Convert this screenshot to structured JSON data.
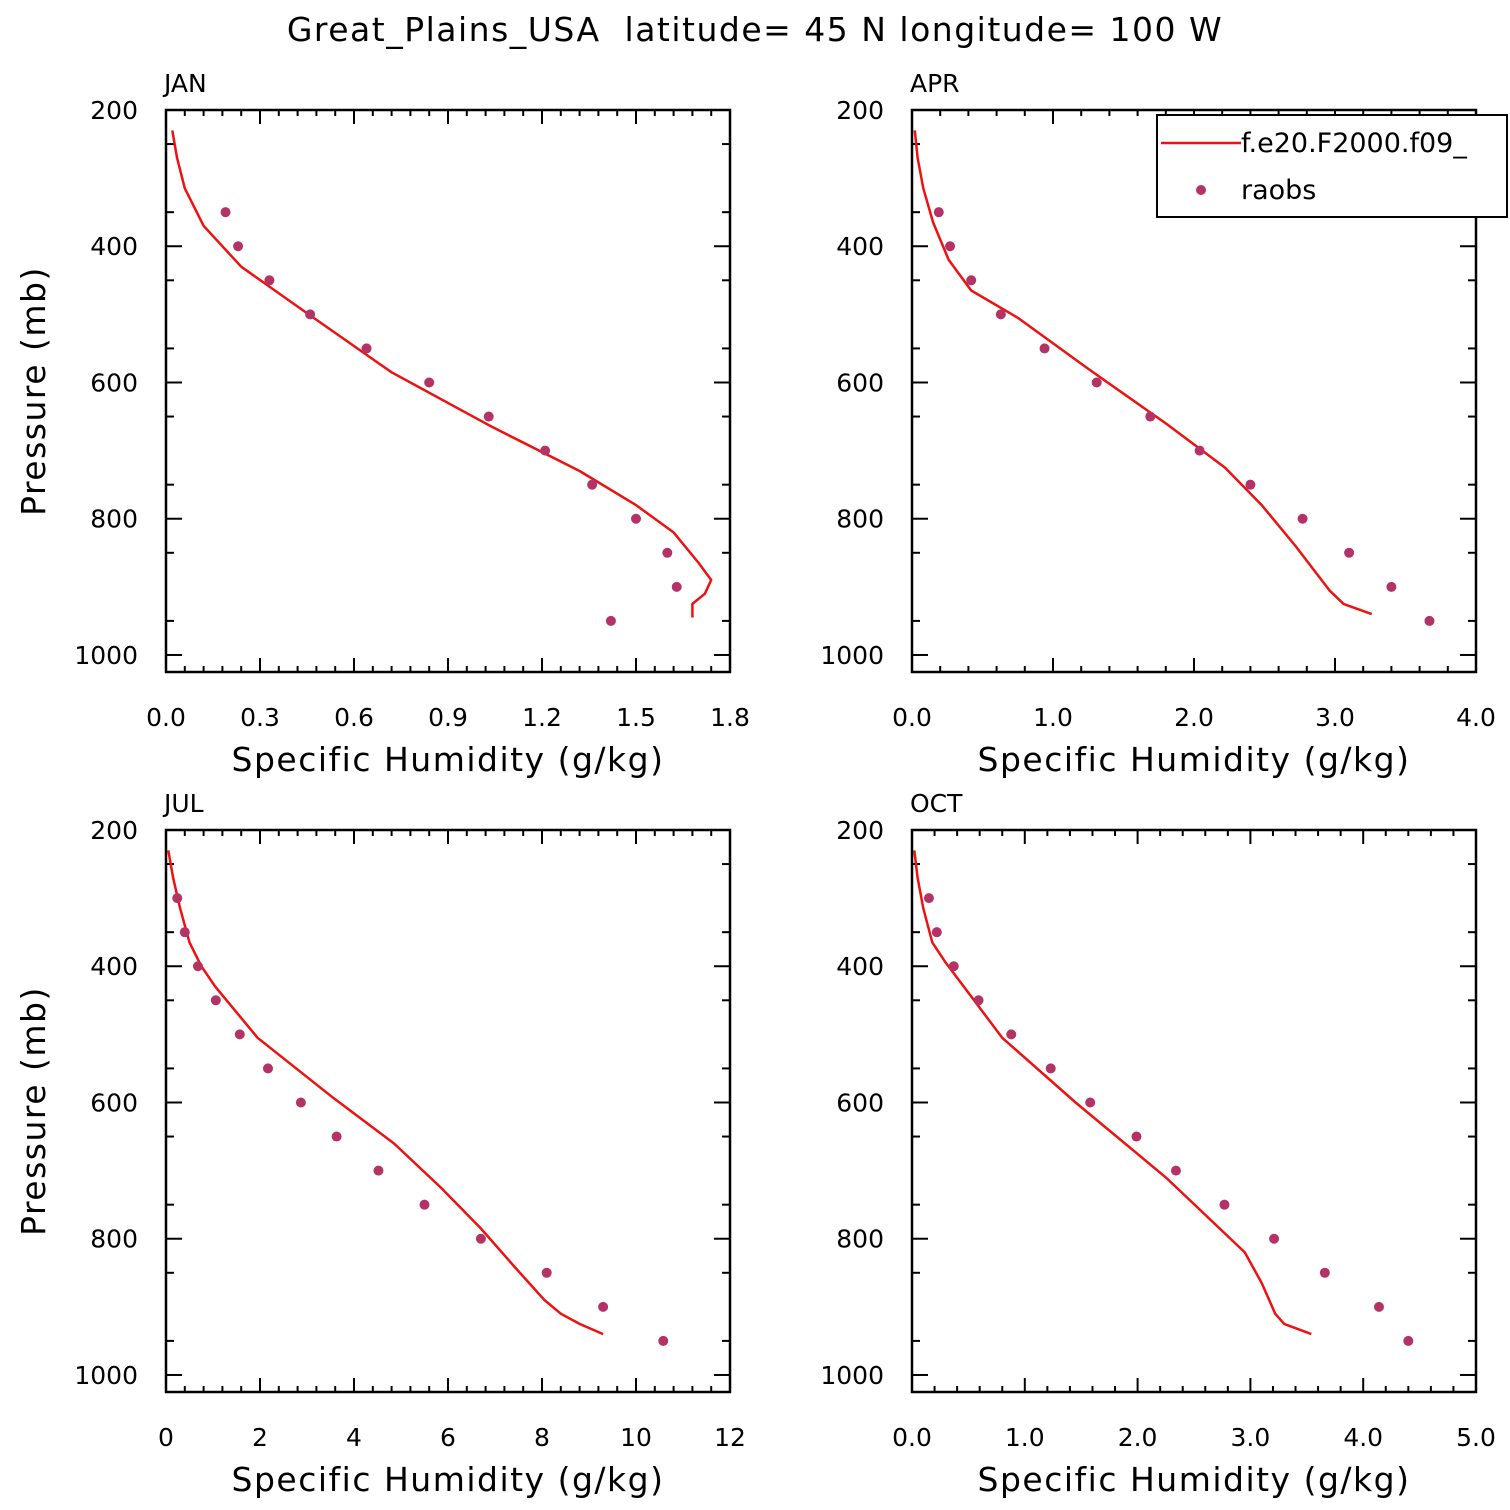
{
  "figure": {
    "title": "Great_Plains_USA  latitude= 45 N longitude= 100 W"
  },
  "chart_data": [
    {
      "type": "line",
      "panel_label": "JAN",
      "xlabel": "Specific Humidity (g/kg)",
      "ylabel": "Pressure (mb)",
      "xlim": [
        0,
        1.8
      ],
      "ylim": [
        1025,
        200
      ],
      "x_ticks": [
        "0.0",
        "0.3",
        "0.6",
        "0.9",
        "1.2",
        "1.5",
        "1.8"
      ],
      "x_tick_values": [
        0,
        0.3,
        0.6,
        0.9,
        1.2,
        1.5,
        1.8
      ],
      "y_ticks": [
        "200",
        "400",
        "600",
        "800",
        "1000"
      ],
      "y_tick_values": [
        200,
        400,
        600,
        800,
        1000
      ],
      "series": [
        {
          "kind": "line",
          "color": "#ee1111",
          "x": [
            0.02,
            0.035,
            0.06,
            0.12,
            0.24,
            0.44,
            0.72,
            1.04,
            1.32,
            1.5,
            1.62,
            1.7,
            1.74,
            1.72,
            1.68,
            1.68
          ],
          "y": [
            230,
            270,
            315,
            370,
            430,
            495,
            585,
            665,
            730,
            780,
            820,
            865,
            890,
            910,
            925,
            945
          ]
        },
        {
          "kind": "scatter",
          "color": "#b33366",
          "x": [
            0.19,
            0.23,
            0.33,
            0.46,
            0.64,
            0.84,
            1.03,
            1.21,
            1.36,
            1.5,
            1.6,
            1.63,
            1.42
          ],
          "y": [
            350,
            400,
            450,
            500,
            550,
            600,
            650,
            700,
            750,
            800,
            850,
            900,
            950
          ]
        }
      ]
    },
    {
      "type": "line",
      "panel_label": "APR",
      "xlabel": "Specific Humidity (g/kg)",
      "ylabel": "",
      "xlim": [
        0,
        4.0
      ],
      "ylim": [
        1025,
        200
      ],
      "x_ticks": [
        "0.0",
        "1.0",
        "2.0",
        "3.0",
        "4.0"
      ],
      "x_tick_values": [
        0,
        1,
        2,
        3,
        4
      ],
      "y_ticks": [
        "200",
        "400",
        "600",
        "800",
        "1000"
      ],
      "y_tick_values": [
        200,
        400,
        600,
        800,
        1000
      ],
      "legend": {
        "placement": "top-right",
        "entries": [
          {
            "label": "f.e20.F2000.f09_",
            "kind": "line",
            "color": "#ee1111"
          },
          {
            "label": "raobs",
            "kind": "marker",
            "color": "#b33366"
          }
        ]
      },
      "series": [
        {
          "kind": "line",
          "color": "#ee1111",
          "x": [
            0.02,
            0.04,
            0.08,
            0.15,
            0.26,
            0.42,
            0.75,
            1.25,
            1.8,
            2.22,
            2.48,
            2.72,
            2.96,
            3.06,
            3.26
          ],
          "y": [
            230,
            270,
            315,
            365,
            420,
            465,
            505,
            580,
            660,
            725,
            780,
            840,
            905,
            925,
            940
          ]
        },
        {
          "kind": "scatter",
          "color": "#b33366",
          "x": [
            0.19,
            0.27,
            0.42,
            0.63,
            0.94,
            1.31,
            1.69,
            2.04,
            2.4,
            2.77,
            3.1,
            3.4,
            3.67
          ],
          "y": [
            350,
            400,
            450,
            500,
            550,
            600,
            650,
            700,
            750,
            800,
            850,
            900,
            950
          ]
        }
      ]
    },
    {
      "type": "line",
      "panel_label": "JUL",
      "xlabel": "Specific Humidity (g/kg)",
      "ylabel": "Pressure (mb)",
      "xlim": [
        0,
        12
      ],
      "ylim": [
        1025,
        200
      ],
      "x_ticks": [
        "0",
        "2",
        "4",
        "6",
        "8",
        "10",
        "12"
      ],
      "x_tick_values": [
        0,
        2,
        4,
        6,
        8,
        10,
        12
      ],
      "y_ticks": [
        "200",
        "400",
        "600",
        "800",
        "1000"
      ],
      "y_tick_values": [
        200,
        400,
        600,
        800,
        1000
      ],
      "series": [
        {
          "kind": "line",
          "color": "#ee1111",
          "x": [
            0.05,
            0.15,
            0.3,
            0.5,
            0.75,
            1.05,
            1.95,
            3.5,
            4.85,
            5.85,
            6.7,
            7.4,
            8.05,
            8.4,
            8.8,
            9.3
          ],
          "y": [
            230,
            270,
            315,
            365,
            400,
            430,
            505,
            590,
            660,
            725,
            785,
            840,
            890,
            910,
            925,
            940
          ]
        },
        {
          "kind": "scatter",
          "color": "#b33366",
          "x": [
            0.24,
            0.4,
            0.68,
            1.06,
            1.57,
            2.17,
            2.87,
            3.63,
            4.52,
            5.5,
            6.7,
            8.1,
            9.3,
            10.58
          ],
          "y": [
            300,
            350,
            400,
            450,
            500,
            550,
            600,
            650,
            700,
            750,
            800,
            850,
            900,
            950
          ]
        }
      ]
    },
    {
      "type": "line",
      "panel_label": "OCT",
      "xlabel": "Specific Humidity (g/kg)",
      "ylabel": "",
      "xlim": [
        0,
        5.0
      ],
      "ylim": [
        1025,
        200
      ],
      "x_ticks": [
        "0.0",
        "1.0",
        "2.0",
        "3.0",
        "4.0",
        "5.0"
      ],
      "x_tick_values": [
        0,
        1,
        2,
        3,
        4,
        5
      ],
      "y_ticks": [
        "200",
        "400",
        "600",
        "800",
        "1000"
      ],
      "y_tick_values": [
        200,
        400,
        600,
        800,
        1000
      ],
      "series": [
        {
          "kind": "line",
          "color": "#ee1111",
          "x": [
            0.02,
            0.05,
            0.1,
            0.18,
            0.3,
            0.46,
            0.8,
            1.45,
            2.25,
            2.95,
            3.1,
            3.22,
            3.3,
            3.54
          ],
          "y": [
            230,
            270,
            315,
            365,
            395,
            430,
            505,
            600,
            710,
            820,
            865,
            910,
            925,
            940
          ]
        },
        {
          "kind": "scatter",
          "color": "#b33366",
          "x": [
            0.15,
            0.22,
            0.37,
            0.59,
            0.88,
            1.23,
            1.58,
            1.99,
            2.34,
            2.77,
            3.21,
            3.66,
            4.14,
            4.4
          ],
          "y": [
            300,
            350,
            400,
            450,
            500,
            550,
            600,
            650,
            700,
            750,
            800,
            850,
            900,
            950
          ]
        }
      ]
    }
  ]
}
